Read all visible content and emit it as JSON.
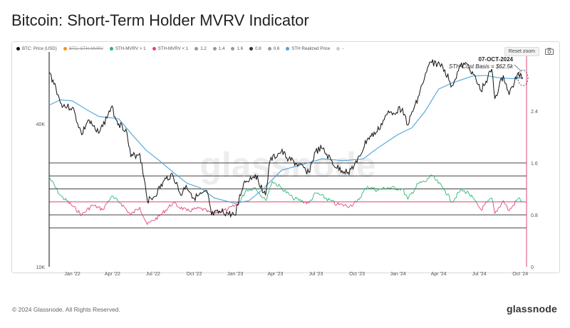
{
  "page": {
    "title": "Bitcoin: Short-Term Holder MVRV Indicator",
    "copyright": "© 2024 Glassnode. All Rights Reserved.",
    "brand": "glassnode",
    "watermark": "glassnode",
    "reset_zoom": "Reset zoom"
  },
  "legend": [
    {
      "label": "BTC: Price (USD)",
      "color": "#111111",
      "off": false
    },
    {
      "label": "BTC: STH-MVRV",
      "color": "#f7931a",
      "off": true
    },
    {
      "label": "STH-MVRV > 1",
      "color": "#2bb673",
      "off": false
    },
    {
      "label": "STH-MVRV < 1",
      "color": "#e0457b",
      "off": false
    },
    {
      "label": "1.2",
      "color": "#999999",
      "off": false
    },
    {
      "label": "1.4",
      "color": "#999999",
      "off": false
    },
    {
      "label": "1.6",
      "color": "#999999",
      "off": false
    },
    {
      "label": "0.8",
      "color": "#333333",
      "off": false
    },
    {
      "label": "0.6",
      "color": "#999999",
      "off": false
    },
    {
      "label": "STH Realized Price",
      "color": "#4fa3d9",
      "off": false
    },
    {
      "label": "-",
      "color": "#cccccc",
      "off": false
    }
  ],
  "annotation": {
    "date": "07-OCT-2024",
    "text": "STH-Cost Basis = $62.5k"
  },
  "chart_data": {
    "type": "line",
    "x_ticks": [
      "Jan '22",
      "Apr '22",
      "Jul '22",
      "Oct '22",
      "Jan '23",
      "Apr '23",
      "Jul '23",
      "Oct '23",
      "Jan '24",
      "Apr '24",
      "Jul '24",
      "Oct '24"
    ],
    "y_left_ticks": [
      "40K",
      "10K"
    ],
    "y_right_ticks": [
      "2.4",
      "1.6",
      "0.8",
      "0"
    ],
    "y_left_scale": "log",
    "y_left_range": [
      10000,
      75000
    ],
    "y_right_range": [
      0,
      3.2
    ],
    "horizontal_levels": [
      1.6,
      1.4,
      1.2,
      1.0,
      0.8,
      0.6
    ],
    "colors": {
      "price": "#111111",
      "realized": "#4fa3d9",
      "mvrv_above": "#2bb673",
      "mvrv_below": "#e0457b",
      "right_axis": "#e0457b"
    },
    "series": [
      {
        "name": "BTC: Price (USD)",
        "axis": "left",
        "points": [
          [
            "2021-11-10",
            66000
          ],
          [
            "2021-11-25",
            57000
          ],
          [
            "2021-12-05",
            49000
          ],
          [
            "2021-12-20",
            47000
          ],
          [
            "2022-01-01",
            47000
          ],
          [
            "2022-01-22",
            36000
          ],
          [
            "2022-02-05",
            41500
          ],
          [
            "2022-02-24",
            37000
          ],
          [
            "2022-03-10",
            39000
          ],
          [
            "2022-03-29",
            47000
          ],
          [
            "2022-04-15",
            40000
          ],
          [
            "2022-05-01",
            38000
          ],
          [
            "2022-05-12",
            29000
          ],
          [
            "2022-06-01",
            30000
          ],
          [
            "2022-06-13",
            22500
          ],
          [
            "2022-06-18",
            19000
          ],
          [
            "2022-07-01",
            19500
          ],
          [
            "2022-07-30",
            23500
          ],
          [
            "2022-08-14",
            24500
          ],
          [
            "2022-09-01",
            20000
          ],
          [
            "2022-09-13",
            22000
          ],
          [
            "2022-10-01",
            19500
          ],
          [
            "2022-10-31",
            20500
          ],
          [
            "2022-11-09",
            16500
          ],
          [
            "2022-12-01",
            17000
          ],
          [
            "2022-12-31",
            16500
          ],
          [
            "2023-01-20",
            22500
          ],
          [
            "2023-02-15",
            24500
          ],
          [
            "2023-03-10",
            20000
          ],
          [
            "2023-03-20",
            28000
          ],
          [
            "2023-04-14",
            30500
          ],
          [
            "2023-05-01",
            28500
          ],
          [
            "2023-06-15",
            25000
          ],
          [
            "2023-06-30",
            30500
          ],
          [
            "2023-07-14",
            31500
          ],
          [
            "2023-08-17",
            26000
          ],
          [
            "2023-09-11",
            25000
          ],
          [
            "2023-10-01",
            27500
          ],
          [
            "2023-10-24",
            34500
          ],
          [
            "2023-11-15",
            37000
          ],
          [
            "2023-12-08",
            44000
          ],
          [
            "2024-01-11",
            46500
          ],
          [
            "2024-01-23",
            39500
          ],
          [
            "2024-02-15",
            52000
          ],
          [
            "2024-03-05",
            66000
          ],
          [
            "2024-03-14",
            73000
          ],
          [
            "2024-04-10",
            70000
          ],
          [
            "2024-05-01",
            58000
          ],
          [
            "2024-05-20",
            70000
          ],
          [
            "2024-06-07",
            71000
          ],
          [
            "2024-07-05",
            55000
          ],
          [
            "2024-07-29",
            68000
          ],
          [
            "2024-08-05",
            51000
          ],
          [
            "2024-08-24",
            64000
          ],
          [
            "2024-09-06",
            53000
          ],
          [
            "2024-09-27",
            65800
          ],
          [
            "2024-10-07",
            62500
          ]
        ]
      },
      {
        "name": "STH Realized Price",
        "axis": "left",
        "points": [
          [
            "2021-11-10",
            48000
          ],
          [
            "2021-12-05",
            50500
          ],
          [
            "2022-01-01",
            50000
          ],
          [
            "2022-02-01",
            46000
          ],
          [
            "2022-03-01",
            43000
          ],
          [
            "2022-04-15",
            42000
          ],
          [
            "2022-05-15",
            36000
          ],
          [
            "2022-06-15",
            31000
          ],
          [
            "2022-07-15",
            28000
          ],
          [
            "2022-08-15",
            25000
          ],
          [
            "2022-09-15",
            22500
          ],
          [
            "2022-10-15",
            21500
          ],
          [
            "2022-11-15",
            19500
          ],
          [
            "2022-12-31",
            18500
          ],
          [
            "2023-02-01",
            19000
          ],
          [
            "2023-03-01",
            21000
          ],
          [
            "2023-04-15",
            25500
          ],
          [
            "2023-06-01",
            27000
          ],
          [
            "2023-07-15",
            28500
          ],
          [
            "2023-09-01",
            28000
          ],
          [
            "2023-10-15",
            28500
          ],
          [
            "2023-11-15",
            31500
          ],
          [
            "2023-12-31",
            36000
          ],
          [
            "2024-02-01",
            38500
          ],
          [
            "2024-03-01",
            45000
          ],
          [
            "2024-04-01",
            56000
          ],
          [
            "2024-05-01",
            59500
          ],
          [
            "2024-06-15",
            63500
          ],
          [
            "2024-07-15",
            64000
          ],
          [
            "2024-08-15",
            62500
          ],
          [
            "2024-09-15",
            62000
          ],
          [
            "2024-10-07",
            62500
          ]
        ]
      },
      {
        "name": "BTC: STH-MVRV",
        "axis": "right",
        "points": [
          [
            "2021-11-10",
            1.38
          ],
          [
            "2021-12-05",
            1.1
          ],
          [
            "2022-01-01",
            0.94
          ],
          [
            "2022-01-22",
            0.8
          ],
          [
            "2022-02-15",
            0.95
          ],
          [
            "2022-03-10",
            0.88
          ],
          [
            "2022-03-29",
            1.08
          ],
          [
            "2022-04-20",
            0.98
          ],
          [
            "2022-05-12",
            0.8
          ],
          [
            "2022-06-01",
            0.92
          ],
          [
            "2022-06-18",
            0.65
          ],
          [
            "2022-07-15",
            0.78
          ],
          [
            "2022-08-14",
            0.98
          ],
          [
            "2022-09-15",
            0.86
          ],
          [
            "2022-10-15",
            0.9
          ],
          [
            "2022-11-09",
            0.82
          ],
          [
            "2022-12-15",
            0.88
          ],
          [
            "2023-01-10",
            0.98
          ],
          [
            "2023-01-25",
            1.18
          ],
          [
            "2023-02-15",
            1.22
          ],
          [
            "2023-03-10",
            1.02
          ],
          [
            "2023-03-25",
            1.32
          ],
          [
            "2023-04-14",
            1.22
          ],
          [
            "2023-05-10",
            1.06
          ],
          [
            "2023-06-15",
            0.98
          ],
          [
            "2023-07-01",
            1.14
          ],
          [
            "2023-08-17",
            0.96
          ],
          [
            "2023-09-15",
            0.94
          ],
          [
            "2023-10-01",
            1.0
          ],
          [
            "2023-10-24",
            1.24
          ],
          [
            "2023-11-15",
            1.18
          ],
          [
            "2023-12-08",
            1.22
          ],
          [
            "2024-01-11",
            1.2
          ],
          [
            "2024-01-23",
            1.04
          ],
          [
            "2024-02-15",
            1.28
          ],
          [
            "2024-03-05",
            1.32
          ],
          [
            "2024-03-14",
            1.42
          ],
          [
            "2024-04-15",
            1.18
          ],
          [
            "2024-05-01",
            1.0
          ],
          [
            "2024-05-20",
            1.18
          ],
          [
            "2024-06-07",
            1.14
          ],
          [
            "2024-07-05",
            0.88
          ],
          [
            "2024-07-29",
            1.06
          ],
          [
            "2024-08-05",
            0.82
          ],
          [
            "2024-08-24",
            1.02
          ],
          [
            "2024-09-06",
            0.86
          ],
          [
            "2024-09-27",
            1.06
          ],
          [
            "2024-10-07",
            1.0
          ]
        ]
      }
    ]
  }
}
